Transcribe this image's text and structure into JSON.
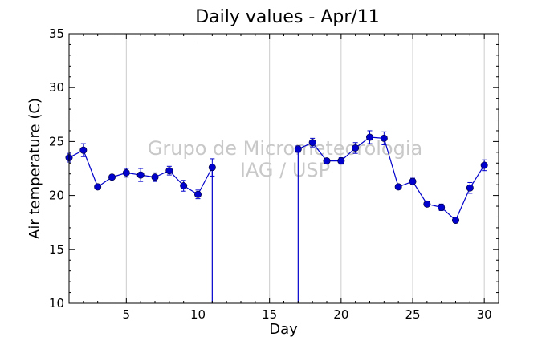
{
  "chart_data": {
    "type": "line",
    "title": "Daily values - Apr/11",
    "xlabel": "Day",
    "ylabel": "Air temperature (C)",
    "xlim": [
      1,
      31
    ],
    "ylim": [
      10,
      35
    ],
    "xticks": [
      5,
      10,
      15,
      20,
      25,
      30
    ],
    "yticks": [
      10,
      15,
      20,
      25,
      30,
      35
    ],
    "grid": "vertical",
    "watermark": [
      "Grupo de Micrometeorologia",
      "IAG / USP"
    ],
    "series": [
      {
        "color": "#0000cc",
        "x": [
          1,
          2,
          3,
          4,
          5,
          6,
          7,
          8,
          9,
          10,
          11,
          17,
          18,
          19,
          20,
          21,
          22,
          23,
          24,
          25,
          26,
          27,
          28,
          29,
          30
        ],
        "y": [
          23.5,
          24.2,
          20.8,
          21.7,
          22.1,
          21.9,
          21.7,
          22.3,
          20.9,
          20.1,
          22.6,
          24.3,
          24.9,
          23.2,
          23.2,
          24.4,
          25.4,
          25.3,
          20.8,
          21.3,
          19.2,
          18.9,
          17.7,
          20.7,
          22.8
        ],
        "err": [
          0.4,
          0.6,
          0.2,
          0.2,
          0.4,
          0.6,
          0.4,
          0.4,
          0.5,
          0.4,
          0.8,
          0.3,
          0.4,
          0.2,
          0.3,
          0.5,
          0.6,
          0.6,
          0.2,
          0.3,
          0.2,
          0.3,
          0.2,
          0.5,
          0.5
        ]
      }
    ]
  }
}
